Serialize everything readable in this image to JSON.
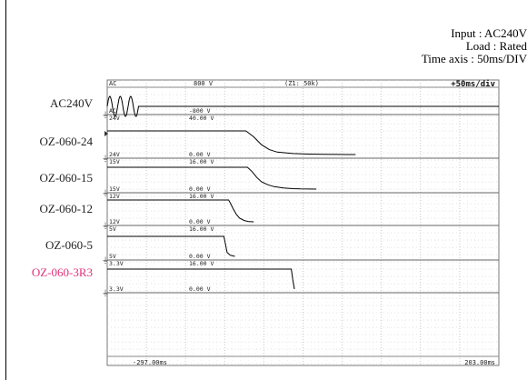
{
  "conditions": {
    "input": "Input : AC240V",
    "load": "Load : Rated",
    "time_axis": "Time axis : 50ms/DIV"
  },
  "colors": {
    "grid": "#bdbdbd",
    "dots": "#c8c8c8",
    "trace": "#000000",
    "highlight_label": "#e0307a"
  },
  "chart_data": {
    "type": "line",
    "title": "",
    "x_unit": "ms",
    "x_range": [
      -297,
      203
    ],
    "time_per_div": "50ms/DIV",
    "top_bar": {
      "left": "AC",
      "center_left": "800 V",
      "center": "(Z1: 50k)",
      "right": "+50ms/div"
    },
    "bottom_bar": {
      "left_time": "-297.00ms",
      "right_time": "203.00ms"
    },
    "channels": [
      {
        "name": "AC240V",
        "color": "#000000",
        "scale_top_left": "AC",
        "scale_top_value": "800 V",
        "scale_bottom_left": "AC",
        "scale_bottom_value": "-800 V",
        "signal": "sine",
        "cycles_end_ms": -257,
        "points": [
          [
            -297,
            0
          ],
          [
            -257,
            0
          ],
          [
            203,
            0
          ]
        ]
      },
      {
        "name": "OZ-060-24",
        "color": "#000000",
        "scale_top_left": "24V",
        "scale_top_value": "40.00 V",
        "scale_bottom_left": "24V",
        "scale_bottom_value": "0.00 V",
        "signal": "decay",
        "points": [
          [
            -297,
            24
          ],
          [
            -120,
            24
          ],
          [
            -110,
            18
          ],
          [
            -100,
            10
          ],
          [
            -90,
            5
          ],
          [
            -80,
            2.5
          ],
          [
            -60,
            1
          ],
          [
            -40,
            0.5
          ],
          [
            -20,
            0.2
          ],
          [
            0,
            0.1
          ],
          [
            20,
            0
          ]
        ]
      },
      {
        "name": "OZ-060-15",
        "color": "#000000",
        "scale_top_left": "15V",
        "scale_top_value": "16.00 V",
        "scale_bottom_left": "15V",
        "scale_bottom_value": "0.00 V",
        "signal": "decay",
        "points": [
          [
            -297,
            15
          ],
          [
            -118,
            15
          ],
          [
            -112,
            12
          ],
          [
            -106,
            8
          ],
          [
            -100,
            5
          ],
          [
            -92,
            3
          ],
          [
            -84,
            1.7
          ],
          [
            -72,
            0.8
          ],
          [
            -60,
            0.3
          ],
          [
            -50,
            0.1
          ],
          [
            -30,
            0
          ]
        ]
      },
      {
        "name": "OZ-060-12",
        "color": "#000000",
        "scale_top_left": "12V",
        "scale_top_value": "16.00 V",
        "scale_bottom_left": "12V",
        "scale_bottom_value": "0.00 V",
        "signal": "decay",
        "points": [
          [
            -297,
            12
          ],
          [
            -142,
            12
          ],
          [
            -140,
            10.5
          ],
          [
            -136,
            7
          ],
          [
            -132,
            4
          ],
          [
            -128,
            2
          ],
          [
            -122,
            0.7
          ],
          [
            -116,
            0.1
          ],
          [
            -110,
            0
          ]
        ]
      },
      {
        "name": "OZ-060-5",
        "color": "#000000",
        "scale_top_left": "5V",
        "scale_top_value": "16.00 V",
        "scale_bottom_left": "5V",
        "scale_bottom_value": "0.00 V",
        "signal": "step",
        "points": [
          [
            -297,
            5
          ],
          [
            -148,
            5
          ],
          [
            -146,
            3
          ],
          [
            -144,
            1
          ],
          [
            -140,
            0.3
          ],
          [
            -134,
            0
          ]
        ]
      },
      {
        "name": "OZ-060-3R3",
        "color": "#000000",
        "scale_top_left": "3.3V",
        "scale_top_value": "16.00 V",
        "scale_bottom_left": "3.3V",
        "scale_bottom_value": "0.00 V",
        "signal": "step",
        "highlight_label": true,
        "points": [
          [
            -297,
            3.3
          ],
          [
            -62,
            3.3
          ],
          [
            -60,
            1.5
          ],
          [
            -58,
            0
          ]
        ]
      }
    ]
  }
}
